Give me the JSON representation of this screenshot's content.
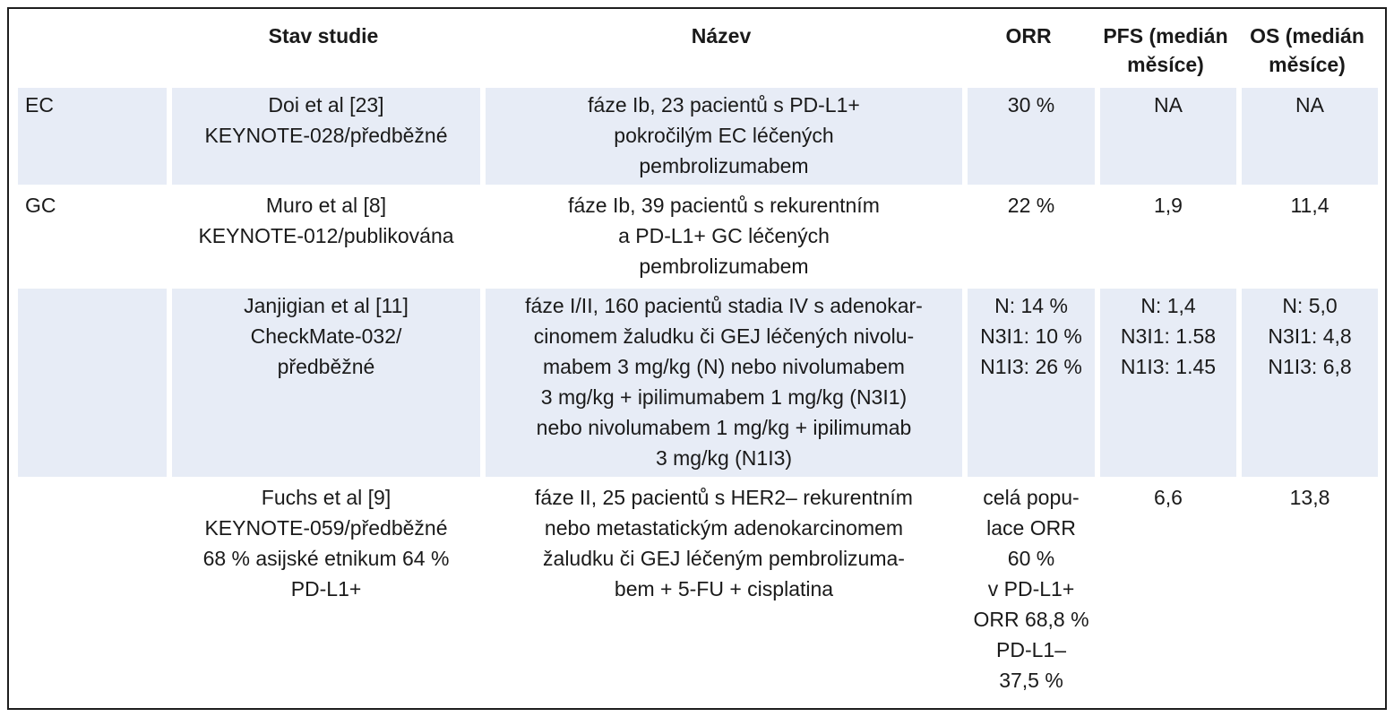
{
  "table": {
    "headers": {
      "group": "",
      "stav": "Stav studie",
      "name": "Název",
      "orr": "ORR",
      "pfs": [
        "PFS (medián",
        "měsíce)"
      ],
      "os": [
        "OS (medián",
        "měsíce)"
      ]
    },
    "rows": [
      {
        "shaded": true,
        "group": "EC",
        "stav": [
          "Doi et al [23]",
          "KEYNOTE-028/předběžné"
        ],
        "name": [
          "fáze Ib, 23 pacientů s PD-L1+",
          "pokročilým EC léčených",
          "pembrolizumabem"
        ],
        "orr": [
          "30 %"
        ],
        "pfs": [
          "NA"
        ],
        "os": [
          "NA"
        ]
      },
      {
        "shaded": false,
        "group": "GC",
        "stav": [
          "Muro et al [8]",
          "KEYNOTE-012/publikována"
        ],
        "name": [
          "fáze Ib, 39 pacientů s rekurentním",
          "a PD-L1+ GC léčených",
          "pembrolizumabem"
        ],
        "orr": [
          "22 %"
        ],
        "pfs": [
          "1,9"
        ],
        "os": [
          "11,4"
        ]
      },
      {
        "shaded": true,
        "group": "",
        "stav": [
          "Janjigian et al [11]",
          "CheckMate-032/",
          "předběžné"
        ],
        "name": [
          "fáze I/II, 160 pacientů stadia IV s adenokar-",
          "cinomem žaludku či GEJ léčených nivolu-",
          "mabem 3 mg/kg (N) nebo nivolumabem",
          "3 mg/kg + ipilimumabem 1 mg/kg (N3I1)",
          "nebo nivolumabem 1 mg/kg + ipilimumab",
          "3 mg/kg (N1I3)"
        ],
        "orr": [
          "N: 14 %",
          "N3I1: 10 %",
          "N1I3: 26 %"
        ],
        "pfs": [
          "N: 1,4",
          "N3I1: 1.58",
          "N1I3: 1.45"
        ],
        "os": [
          "N: 5,0",
          "N3I1: 4,8",
          "N1I3: 6,8"
        ]
      },
      {
        "shaded": false,
        "group": "",
        "stav": [
          "Fuchs et al [9]",
          "KEYNOTE-059/předběžné",
          "68 % asijské etnikum 64 %",
          "PD-L1+"
        ],
        "name": [
          "fáze II, 25 pacientů s HER2– rekurentním",
          "nebo metastatickým adenokarcinomem",
          "žaludku či GEJ léčeným pembrolizuma-",
          "bem + 5-FU + cisplatina"
        ],
        "orr": [
          "celá popu-",
          "lace ORR",
          "60 %",
          "v PD-L1+",
          "ORR 68,8 %",
          "PD-L1–",
          "37,5 %"
        ],
        "pfs": [
          "6,6"
        ],
        "os": [
          "13,8"
        ]
      }
    ]
  }
}
